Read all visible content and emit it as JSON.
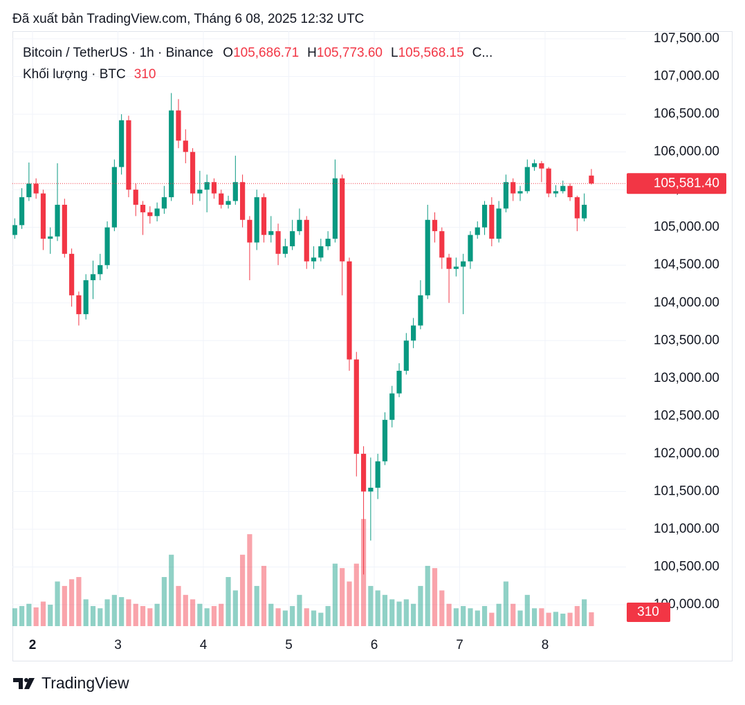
{
  "source": "Đã xuất bản TradingView.com, Tháng 6 08, 2025 12:32 UTC",
  "brand": "TradingView",
  "chart_data": {
    "type": "candlestick",
    "title": "Bitcoin / TetherUS · 1h · Binance",
    "legend_items": [
      {
        "key": "O",
        "value": "105,686.71"
      },
      {
        "key": "H",
        "value": "105,773.60"
      },
      {
        "key": "L",
        "value": "105,568.15"
      },
      {
        "key": "C..."
      }
    ],
    "volume_title": "Khối lượng · BTC",
    "up_color": "#089981",
    "down_color": "#f23645",
    "grid": true,
    "x": [
      -5,
      -3,
      -1,
      1,
      3,
      5,
      7,
      9,
      11,
      13,
      15,
      17,
      19,
      21,
      23,
      25,
      27,
      29,
      31,
      33,
      35,
      37,
      39,
      41,
      43,
      45,
      47,
      49,
      51,
      53,
      55,
      57,
      59,
      61,
      63,
      65,
      67,
      69,
      71,
      73,
      75,
      77,
      79,
      81,
      83,
      85,
      87,
      89,
      91,
      93,
      95,
      97,
      99,
      101,
      103,
      105,
      107,
      109,
      111,
      113,
      115,
      117,
      119,
      121,
      123,
      125,
      127,
      129,
      131,
      133,
      135,
      137,
      139,
      141,
      143,
      145,
      147,
      149,
      151,
      153,
      155,
      157
    ],
    "open": [
      104900,
      105030,
      105400,
      105580,
      105450,
      104850,
      104880,
      105300,
      104650,
      104100,
      103850,
      104300,
      104380,
      104500,
      105000,
      105800,
      106420,
      105500,
      105300,
      105200,
      105150,
      105250,
      105400,
      106550,
      106150,
      106000,
      105450,
      105500,
      105600,
      105450,
      105300,
      105350,
      105600,
      105100,
      104800,
      105400,
      104900,
      104950,
      104650,
      104750,
      104950,
      105100,
      104550,
      104600,
      104750,
      104850,
      105650,
      104550,
      103250,
      102000,
      101500,
      101550,
      101900,
      102450,
      102800,
      103100,
      103500,
      103700,
      104100,
      105100,
      104950,
      104600,
      104450,
      104480,
      104550,
      104900,
      105000,
      105300,
      104850,
      105250,
      105600,
      105450,
      105480,
      105800,
      105850,
      105780,
      105450,
      105480,
      105550,
      105400,
      105120,
      105686.71
    ],
    "high": [
      105120,
      105520,
      105860,
      105650,
      105500,
      105000,
      105850,
      105380,
      104720,
      104150,
      104380,
      104560,
      104650,
      105080,
      105900,
      106500,
      106480,
      105580,
      105350,
      105280,
      105330,
      105550,
      106780,
      106700,
      106300,
      106050,
      105750,
      105700,
      105650,
      105500,
      105420,
      105950,
      105700,
      105150,
      105500,
      105450,
      105150,
      105050,
      104850,
      105100,
      105250,
      105150,
      104750,
      104850,
      104950,
      105900,
      105700,
      104600,
      103350,
      102100,
      101950,
      102000,
      102550,
      102900,
      103200,
      103600,
      103800,
      104300,
      105300,
      105200,
      105000,
      104650,
      104600,
      104650,
      104950,
      105080,
      105350,
      105400,
      105350,
      105700,
      105650,
      105550,
      105900,
      105900,
      105880,
      105800,
      105560,
      105620,
      105580,
      105420,
      105450,
      105773.6
    ],
    "low": [
      104850,
      104980,
      105350,
      105380,
      104700,
      104650,
      104820,
      104600,
      103950,
      103700,
      103780,
      104050,
      104300,
      104450,
      104950,
      105700,
      105400,
      105150,
      104900,
      105050,
      105080,
      105180,
      105350,
      106050,
      105850,
      105300,
      105350,
      105200,
      105380,
      105250,
      105250,
      105300,
      105000,
      104300,
      104700,
      104800,
      104800,
      104500,
      104600,
      104700,
      104900,
      104450,
      104450,
      104550,
      104700,
      104800,
      104100,
      103100,
      101700,
      100400,
      100850,
      101400,
      101850,
      102350,
      102750,
      103050,
      103400,
      103650,
      104050,
      104800,
      104450,
      104000,
      104350,
      103850,
      104450,
      104850,
      104900,
      104750,
      104800,
      105200,
      105350,
      105350,
      105450,
      105750,
      105600,
      105400,
      105400,
      105450,
      105350,
      104950,
      105080,
      105568.15
    ],
    "close": [
      105030,
      105400,
      105580,
      105450,
      104850,
      104880,
      105300,
      104650,
      104100,
      103850,
      104300,
      104380,
      104500,
      105000,
      105800,
      106420,
      105500,
      105300,
      105200,
      105150,
      105250,
      105400,
      106550,
      106150,
      106000,
      105450,
      105500,
      105600,
      105450,
      105300,
      105350,
      105600,
      105100,
      104800,
      105400,
      104900,
      104950,
      104650,
      104750,
      104950,
      105100,
      104550,
      104600,
      104750,
      104850,
      105650,
      104550,
      103250,
      102000,
      101500,
      101550,
      101900,
      102450,
      102800,
      103100,
      103500,
      103700,
      104100,
      105100,
      104950,
      104600,
      104450,
      104480,
      104550,
      104900,
      105000,
      105300,
      104850,
      105250,
      105600,
      105450,
      105480,
      105800,
      105850,
      105780,
      105450,
      105480,
      105550,
      105400,
      105120,
      105300,
      105581.4
    ],
    "last_close_label": "105,581.40",
    "volume": [
      400,
      450,
      500,
      420,
      550,
      480,
      1000,
      900,
      1050,
      1100,
      600,
      450,
      400,
      600,
      700,
      650,
      600,
      500,
      450,
      400,
      500,
      1100,
      1600,
      900,
      700,
      600,
      500,
      400,
      450,
      500,
      1100,
      800,
      1600,
      2060,
      900,
      1350,
      500,
      400,
      350,
      450,
      700,
      400,
      350,
      300,
      450,
      1400,
      1300,
      1000,
      1400,
      2400,
      900,
      800,
      700,
      600,
      550,
      600,
      500,
      900,
      1350,
      1300,
      800,
      500,
      400,
      450,
      400,
      350,
      450,
      300,
      500,
      1000,
      500,
      350,
      700,
      400,
      400,
      300,
      320,
      280,
      300,
      450,
      600,
      310
    ],
    "vlim": [
      0,
      13330
    ],
    "xlim": [
      -5.636,
      166.73
    ],
    "xticks": [
      {
        "value": 0,
        "label": "2"
      },
      {
        "value": 24,
        "label": "3"
      },
      {
        "value": 48,
        "label": "4"
      },
      {
        "value": 72,
        "label": "5"
      },
      {
        "value": 96,
        "label": "6"
      },
      {
        "value": 120,
        "label": "7"
      },
      {
        "value": 144,
        "label": "8"
      }
    ],
    "ylim": [
      99716,
      107601
    ],
    "yticks": [
      {
        "value": 100000,
        "label": "100,000.00"
      },
      {
        "value": 100500,
        "label": "100,500.00"
      },
      {
        "value": 101000,
        "label": "101,000.00"
      },
      {
        "value": 101500,
        "label": "101,500.00"
      },
      {
        "value": 102000,
        "label": "102,000.00"
      },
      {
        "value": 102500,
        "label": "102,500.00"
      },
      {
        "value": 103000,
        "label": "103,000.00"
      },
      {
        "value": 103500,
        "label": "103,500.00"
      },
      {
        "value": 104000,
        "label": "104,000.00"
      },
      {
        "value": 104500,
        "label": "104,500.00"
      },
      {
        "value": 105000,
        "label": "105,000.00"
      },
      {
        "value": 105500,
        "label": "105,500.00"
      },
      {
        "value": 106000,
        "label": "106,000.00"
      },
      {
        "value": 106500,
        "label": "106,500.00"
      },
      {
        "value": 107000,
        "label": "107,000.00"
      },
      {
        "value": 107500,
        "label": "107,500.00"
      }
    ]
  }
}
